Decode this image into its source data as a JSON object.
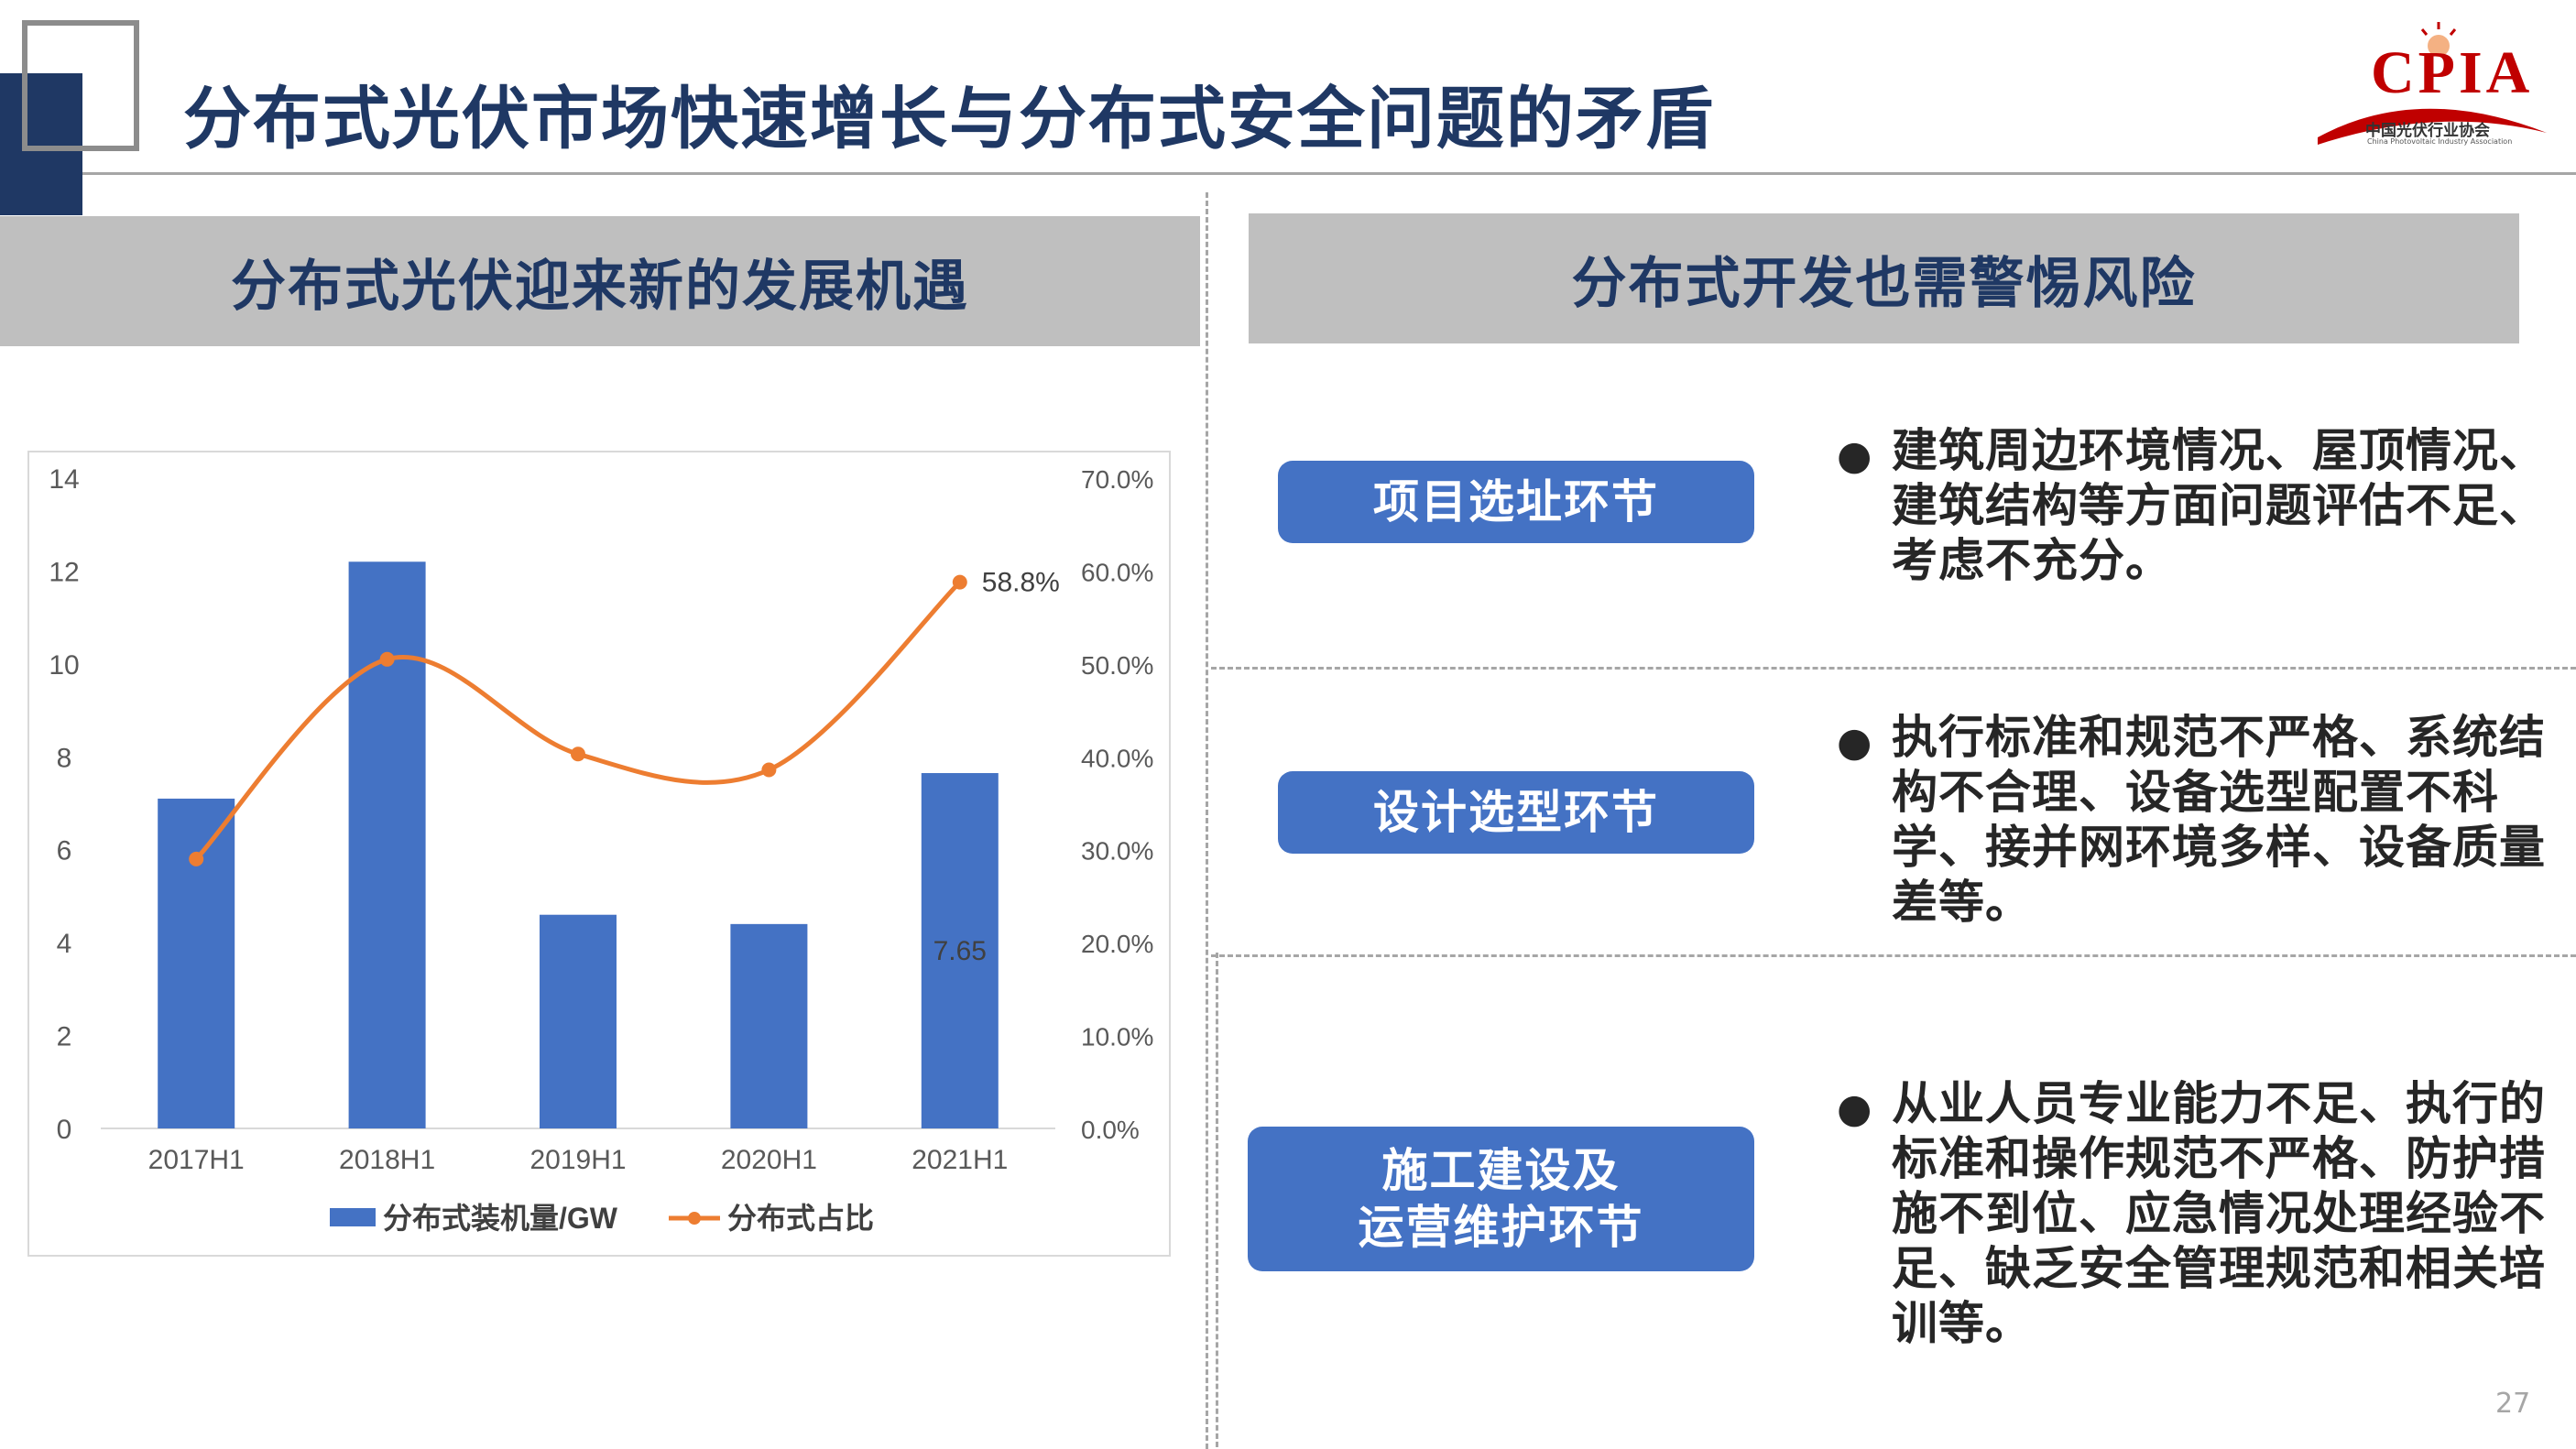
{
  "page": {
    "title": "分布式光伏市场快速增长与分布式安全问题的矛盾",
    "page_number": "27"
  },
  "logo": {
    "text": "CPIA",
    "subtitle": "中国光伏行业协会",
    "subtitle_en": "China Photovoltaic Industry Association",
    "color": "#C00000"
  },
  "left_panel": {
    "header": "分布式光伏迎来新的发展机遇"
  },
  "right_panel": {
    "header": "分布式开发也需警惕风险",
    "items": [
      {
        "label": "项目选址环节",
        "text": "建筑周边环境情况、屋顶情况、建筑结构等方面问题评估不足、考虑不充分。"
      },
      {
        "label": "设计选型环节",
        "text": "执行标准和规范不严格、系统结构不合理、设备选型配置不科学、接并网环境多样、设备质量差等。"
      },
      {
        "label": "施工建设及运营维护环节",
        "label_lines": [
          "施工建设及",
          "运营维护环节"
        ],
        "text": "从业人员专业能力不足、执行的标准和操作规范不严格、防护措施不到位、应急情况处理经验不足、缺乏安全管理规范和相关培训等。"
      }
    ]
  },
  "colors": {
    "navy": "#1F3864",
    "bar": "#4472C4",
    "line": "#ED7D31",
    "header_bg": "#BFBFBF"
  },
  "chart_data": {
    "type": "bar",
    "categories": [
      "2017H1",
      "2018H1",
      "2019H1",
      "2020H1",
      "2021H1"
    ],
    "series": [
      {
        "name": "分布式装机量/GW",
        "type": "bar",
        "axis": "left",
        "values": [
          7.1,
          12.2,
          4.6,
          4.4,
          7.65
        ],
        "color": "#4472C4"
      },
      {
        "name": "分布式占比",
        "type": "line",
        "axis": "right",
        "values": [
          29.0,
          50.5,
          40.3,
          38.6,
          58.8
        ],
        "color": "#ED7D31",
        "smooth": true
      }
    ],
    "y_left": {
      "min": 0,
      "max": 14,
      "ticks": [
        "0",
        "2",
        "4",
        "6",
        "8",
        "10",
        "12",
        "14"
      ]
    },
    "y_right": {
      "min": 0,
      "max": 70,
      "ticks": [
        "0.0%",
        "10.0%",
        "20.0%",
        "30.0%",
        "40.0%",
        "50.0%",
        "60.0%",
        "70.0%"
      ]
    },
    "data_labels": [
      {
        "series": "分布式装机量/GW",
        "category": "2021H1",
        "text": "7.65"
      },
      {
        "series": "分布式占比",
        "category": "2021H1",
        "text": "58.8%"
      }
    ],
    "legend": "bottom",
    "grid": false
  }
}
